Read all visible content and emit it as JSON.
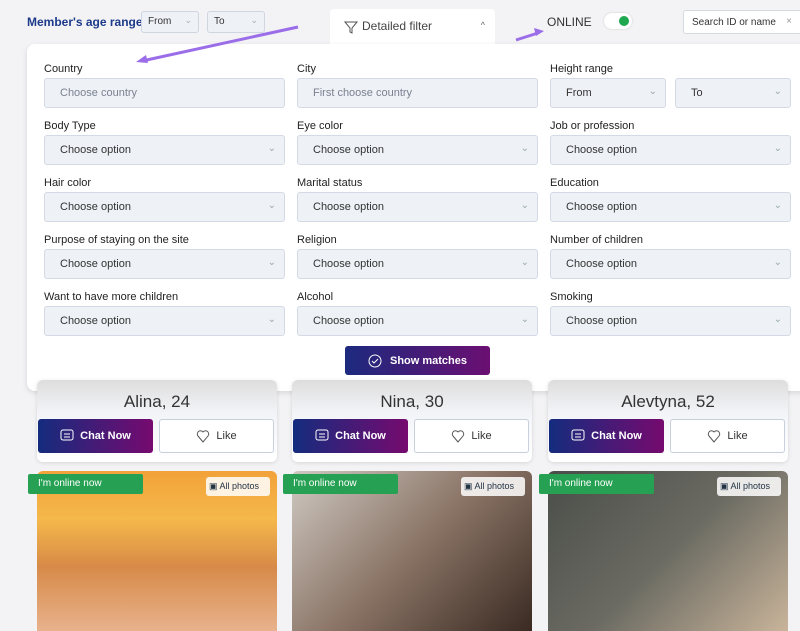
{
  "header": {
    "age_label": "Member's age range",
    "age_from": "From",
    "age_to": "To",
    "filter_tab": "Detailed filter",
    "online_label": "ONLINE",
    "online_on": true,
    "search_placeholder": "Search ID or name"
  },
  "filters": [
    {
      "label": "Country",
      "value": "Choose country",
      "placeholder": true
    },
    {
      "label": "City",
      "value": "First choose country",
      "placeholder": true
    },
    {
      "label": "Height range",
      "from": "From",
      "to": "To"
    },
    {
      "label": "Body Type",
      "value": "Choose option"
    },
    {
      "label": "Eye color",
      "value": "Choose option"
    },
    {
      "label": "Job or profession",
      "value": "Choose option"
    },
    {
      "label": "Hair color",
      "value": "Choose option"
    },
    {
      "label": "Marital status",
      "value": "Choose option"
    },
    {
      "label": "Education",
      "value": "Choose option"
    },
    {
      "label": "Purpose of staying on the site",
      "value": "Choose option"
    },
    {
      "label": "Religion",
      "value": "Choose option"
    },
    {
      "label": "Number of children",
      "value": "Choose option"
    },
    {
      "label": "Want to have more children",
      "value": "Choose option"
    },
    {
      "label": "Alcohol",
      "value": "Choose option"
    },
    {
      "label": "Smoking",
      "value": "Choose option"
    }
  ],
  "show_matches": "Show matches",
  "profiles": [
    {
      "name": "Alina, 24"
    },
    {
      "name": "Nina, 30"
    },
    {
      "name": "Alevtyna, 52"
    }
  ],
  "chat_label": "Chat Now",
  "like_label": "Like",
  "online_badge": "I'm online now",
  "all_photos": "All photos",
  "colors": {
    "accent": "#1d3a8a",
    "online": "#26a153",
    "annotation_arrow": "#9b6de8"
  }
}
